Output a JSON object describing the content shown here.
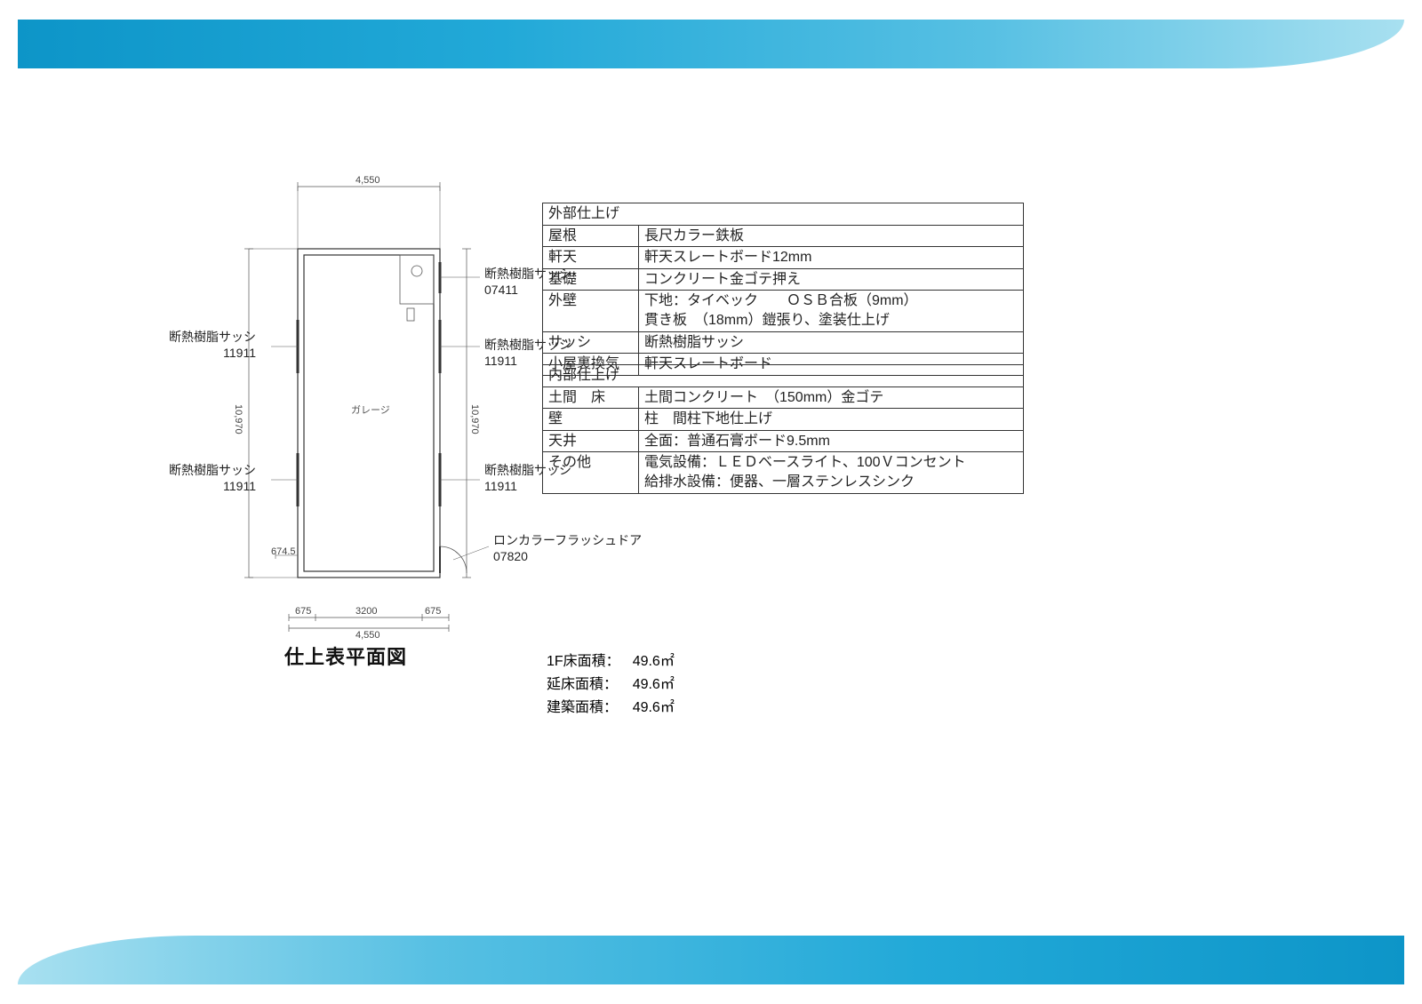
{
  "colors": {
    "banner_gradient": [
      "#0d95c8",
      "#22a9d8",
      "#57c0e3",
      "#a8e0f0"
    ],
    "line": "#333333",
    "text": "#222222"
  },
  "plan": {
    "title": "仕上表平面図",
    "room_label": "ガレージ",
    "top_dim": "4,550",
    "left_dim": "10,970",
    "right_dim": "10,970",
    "bottom_dim_small": "674.5",
    "footer_dims": {
      "a": "675",
      "b": "3200",
      "c": "675",
      "total": "4,550"
    },
    "callouts": {
      "left_upper": {
        "l1": "断熱樹脂サッシ",
        "l2": "11911"
      },
      "left_lower": {
        "l1": "断熱樹脂サッシ",
        "l2": "11911"
      },
      "right_1": {
        "l1": "断熱樹脂サッシ",
        "l2": "07411"
      },
      "right_2": {
        "l1": "断熱樹脂サッシ",
        "l2": "11911"
      },
      "right_3": {
        "l1": "断熱樹脂サッシ",
        "l2": "11911"
      },
      "right_4": {
        "l1": "ロンカラーフラッシュドア",
        "l2": "07820"
      }
    }
  },
  "tables": {
    "exterior": {
      "header": "外部仕上げ",
      "rows": [
        {
          "label": "屋根",
          "value": "長尺カラー鉄板"
        },
        {
          "label": "軒天",
          "value": "軒天スレートボード12mm"
        },
        {
          "label": "基礎",
          "value": "コンクリート金ゴテ押え"
        },
        {
          "label": "外壁",
          "value": "下地：タイベック　　ＯＳＢ合板（9mm）\n貫き板　（18mm）鎧張り、塗装仕上げ"
        },
        {
          "label": "サッシ",
          "value": "断熱樹脂サッシ"
        },
        {
          "label": "小屋裏換気",
          "value": "軒天スレートボード"
        }
      ]
    },
    "interior": {
      "header": "内部仕上げ",
      "rows": [
        {
          "label": "土間　床",
          "value": "土間コンクリート　（150mm）金ゴテ"
        },
        {
          "label": "壁",
          "value": "柱　間柱下地仕上げ"
        },
        {
          "label": "天井",
          "value": "全面：普通石膏ボード9.5mm"
        },
        {
          "label": "その他",
          "value": "電気設備：ＬＥＤベースライト、100Ｖコンセント\n給排水設備：便器、一層ステンレスシンク"
        }
      ]
    }
  },
  "areas": {
    "rows": [
      {
        "label": "1F床面積：",
        "value": "49.6㎡"
      },
      {
        "label": "延床面積：",
        "value": "49.6㎡"
      },
      {
        "label": "建築面積：",
        "value": "49.6㎡"
      }
    ]
  }
}
